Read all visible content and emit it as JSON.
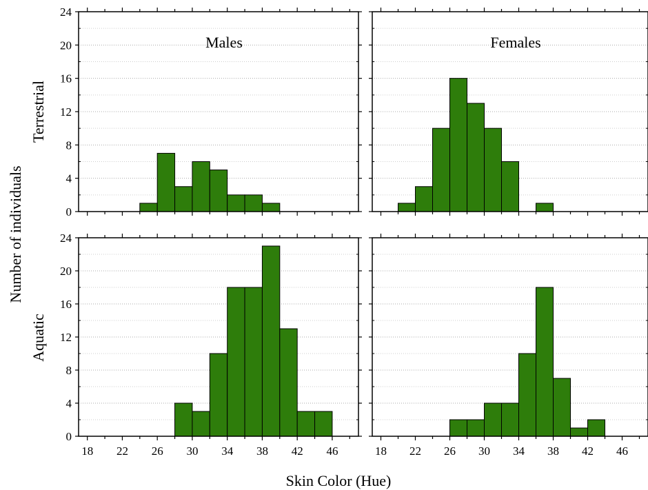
{
  "figure": {
    "xlabel": "Skin Color (Hue)",
    "ylabel": "Number of individuals",
    "column_labels": [
      "Males",
      "Females"
    ],
    "row_labels": [
      "Terrestrial",
      "Aquatic"
    ],
    "bar_color": "#2e7d0b",
    "bar_edge_color": "#000000",
    "grid_color": "#aaaaaa"
  },
  "chart_data": [
    {
      "type": "bar",
      "panel": "Terrestrial / Males",
      "title": "Males",
      "row": "Terrestrial",
      "column": "Males",
      "bin_edges": [
        18,
        20,
        22,
        24,
        26,
        28,
        30,
        32,
        34,
        36,
        38,
        40,
        42,
        44,
        46,
        48
      ],
      "values": [
        0,
        0,
        0,
        1,
        7,
        3,
        6,
        5,
        2,
        2,
        1,
        0,
        0,
        0,
        0
      ],
      "xlim": [
        17,
        49
      ],
      "ylim": [
        0,
        24
      ],
      "xticks": [
        18,
        22,
        26,
        30,
        34,
        38,
        42,
        46
      ],
      "yticks": [
        0,
        4,
        8,
        12,
        16,
        20,
        24
      ],
      "grid": "horizontal"
    },
    {
      "type": "bar",
      "panel": "Terrestrial / Females",
      "title": "Females",
      "row": "Terrestrial",
      "column": "Females",
      "bin_edges": [
        18,
        20,
        22,
        24,
        26,
        28,
        30,
        32,
        34,
        36,
        38,
        40,
        42,
        44,
        46,
        48
      ],
      "values": [
        0,
        1,
        3,
        10,
        16,
        13,
        10,
        6,
        0,
        1,
        0,
        0,
        0,
        0,
        0
      ],
      "xlim": [
        17,
        49
      ],
      "ylim": [
        0,
        24
      ],
      "xticks": [
        18,
        22,
        26,
        30,
        34,
        38,
        42,
        46
      ],
      "yticks": [
        0,
        4,
        8,
        12,
        16,
        20,
        24
      ],
      "grid": "horizontal"
    },
    {
      "type": "bar",
      "panel": "Aquatic / Males",
      "title": "",
      "row": "Aquatic",
      "column": "Males",
      "bin_edges": [
        18,
        20,
        22,
        24,
        26,
        28,
        30,
        32,
        34,
        36,
        38,
        40,
        42,
        44,
        46,
        48
      ],
      "values": [
        0,
        0,
        0,
        0,
        0,
        4,
        3,
        10,
        18,
        18,
        23,
        13,
        3,
        3,
        0
      ],
      "xlim": [
        17,
        49
      ],
      "ylim": [
        0,
        24
      ],
      "xticks": [
        18,
        22,
        26,
        30,
        34,
        38,
        42,
        46
      ],
      "yticks": [
        0,
        4,
        8,
        12,
        16,
        20,
        24
      ],
      "grid": "horizontal"
    },
    {
      "type": "bar",
      "panel": "Aquatic / Females",
      "title": "",
      "row": "Aquatic",
      "column": "Females",
      "bin_edges": [
        18,
        20,
        22,
        24,
        26,
        28,
        30,
        32,
        34,
        36,
        38,
        40,
        42,
        44,
        46,
        48
      ],
      "values": [
        0,
        0,
        0,
        0,
        2,
        2,
        4,
        4,
        10,
        18,
        7,
        1,
        2,
        0,
        0
      ],
      "xlim": [
        17,
        49
      ],
      "ylim": [
        0,
        24
      ],
      "xticks": [
        18,
        22,
        26,
        30,
        34,
        38,
        42,
        46
      ],
      "yticks": [
        0,
        4,
        8,
        12,
        16,
        20,
        24
      ],
      "grid": "horizontal"
    }
  ]
}
